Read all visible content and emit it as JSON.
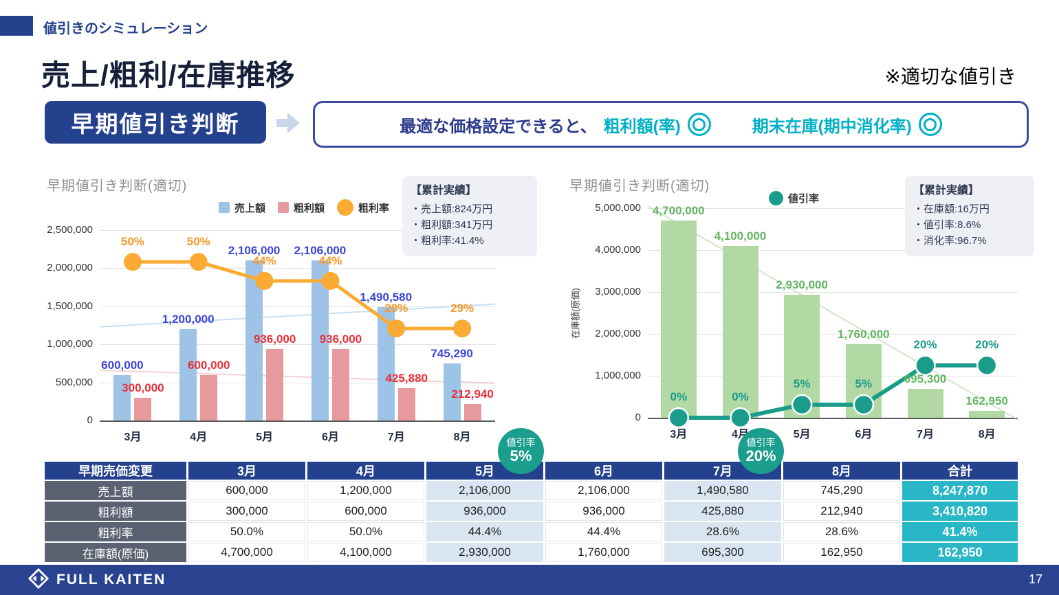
{
  "header": {
    "kicker": "値引きのシミュレーション",
    "title": "売上/粗利/在庫推移",
    "note": "※適切な値引き",
    "badge": "早期値引き判断",
    "callout": {
      "prefix": "最適な価格設定できると、",
      "item1": "粗利額(率)",
      "item2": "期末在庫(期中消化率)"
    }
  },
  "chart_data": [
    {
      "type": "bar",
      "title": "早期値引き判断(適切)",
      "categories": [
        "3月",
        "4月",
        "5月",
        "6月",
        "7月",
        "8月"
      ],
      "series": [
        {
          "name": "売上額",
          "kind": "bar",
          "values": [
            600000,
            1200000,
            2106000,
            2106000,
            1490580,
            745290
          ],
          "labels": [
            "600,000",
            "1,200,000",
            "2,106,000",
            "2,106,000",
            "1,490,580",
            "745,290"
          ]
        },
        {
          "name": "粗利額",
          "kind": "bar",
          "values": [
            300000,
            600000,
            936000,
            936000,
            425880,
            212940
          ],
          "labels": [
            "300,000",
            "600,000",
            "936,000",
            "936,000",
            "425,880",
            "212,940"
          ]
        },
        {
          "name": "粗利率",
          "kind": "line",
          "unit": "%",
          "values": [
            50,
            50,
            44,
            44,
            29,
            29
          ],
          "labels": [
            "50%",
            "50%",
            "44%",
            "44%",
            "29%",
            "29%"
          ]
        }
      ],
      "xlabel": "",
      "ylabel": "",
      "ylim": [
        0,
        2500000
      ],
      "yticks": [
        0,
        500000,
        1000000,
        1500000,
        2000000,
        2500000
      ],
      "ytick_labels": [
        "0",
        "500,000",
        "1,000,000",
        "1,500,000",
        "2,000,000",
        "2,500,000"
      ],
      "line_axis_max": 60,
      "grid": true,
      "legend_position": "top",
      "trendlines": [
        {
          "series": "売上額",
          "from": 1230000,
          "to": 1530000
        },
        {
          "series": "粗利額",
          "from": 660000,
          "to": 490000
        }
      ],
      "summary": {
        "title": "【累計実績】",
        "items": [
          "・売上額:824万円",
          "・粗利額:341万円",
          "・粗利率:41.4%"
        ]
      }
    },
    {
      "type": "bar",
      "title": "早期値引き判断(適切)",
      "categories": [
        "3月",
        "4月",
        "5月",
        "6月",
        "7月",
        "8月"
      ],
      "series": [
        {
          "name": "在庫額(原価)",
          "kind": "bar",
          "values": [
            4700000,
            4100000,
            2930000,
            1760000,
            695300,
            162950
          ],
          "labels": [
            "4,700,000",
            "4,100,000",
            "2,930,000",
            "1,760,000",
            "695,300",
            "162,950"
          ]
        },
        {
          "name": "値引率",
          "kind": "line",
          "unit": "%",
          "values": [
            0,
            0,
            5,
            5,
            20,
            20
          ],
          "labels": [
            "0%",
            "0%",
            "5%",
            "5%",
            "20%",
            "20%"
          ]
        }
      ],
      "xlabel": "",
      "ylabel": "在庫額(原価)",
      "ylim": [
        0,
        5000000
      ],
      "yticks": [
        0,
        1000000,
        2000000,
        3000000,
        4000000,
        5000000
      ],
      "ytick_labels": [
        "0",
        "1,000,000",
        "2,000,000",
        "3,000,000",
        "4,000,000",
        "5,000,000"
      ],
      "line_axis_max": 80,
      "grid": true,
      "legend_position": "top",
      "trendlines": [
        {
          "series": "在庫額(原価)",
          "from": 5050000,
          "to": -50000
        }
      ],
      "summary": {
        "title": "【累計実績】",
        "items": [
          "・在庫額:16万円",
          "・値引率:8.6%",
          "・消化率:96.7%"
        ]
      }
    }
  ],
  "table": {
    "header": [
      "早期売価変更",
      "3月",
      "4月",
      "5月",
      "6月",
      "7月",
      "8月",
      "合計"
    ],
    "rows": [
      {
        "label": "売上額",
        "values": [
          "600,000",
          "1,200,000",
          "2,106,000",
          "2,106,000",
          "1,490,580",
          "745,290"
        ],
        "total": "8,247,870"
      },
      {
        "label": "粗利額",
        "values": [
          "300,000",
          "600,000",
          "936,000",
          "936,000",
          "425,880",
          "212,940"
        ],
        "total": "3,410,820"
      },
      {
        "label": "粗利率",
        "values": [
          "50.0%",
          "50.0%",
          "44.4%",
          "44.4%",
          "28.6%",
          "28.6%"
        ],
        "total": "41.4%"
      },
      {
        "label": "在庫額(原価)",
        "values": [
          "4,700,000",
          "4,100,000",
          "2,930,000",
          "1,760,000",
          "695,300",
          "162,950"
        ],
        "total": "162,950"
      }
    ],
    "highlight_columns": [
      2,
      4
    ]
  },
  "badges": [
    {
      "label": "値引率",
      "value": "5%"
    },
    {
      "label": "値引率",
      "value": "20%"
    }
  ],
  "footer": {
    "brand": "FULL KAITEN",
    "page": "17"
  },
  "colors": {
    "brand_navy": "#24418e",
    "accent_cyan": "#00b0c7",
    "sales_bar": "#9dc3e6",
    "profit_bar": "#e69a9e",
    "rate_line": "#fbaa33",
    "sales_label": "#3d46db",
    "profit_label": "#e8303a",
    "inventory_bar": "#b2d8a4",
    "inventory_label": "#62b561",
    "discount_line": "#1a9c8b",
    "total_column": "#29b7c8",
    "highlight_column": "#d9e6f2",
    "table_label_gray": "#5a6170"
  }
}
